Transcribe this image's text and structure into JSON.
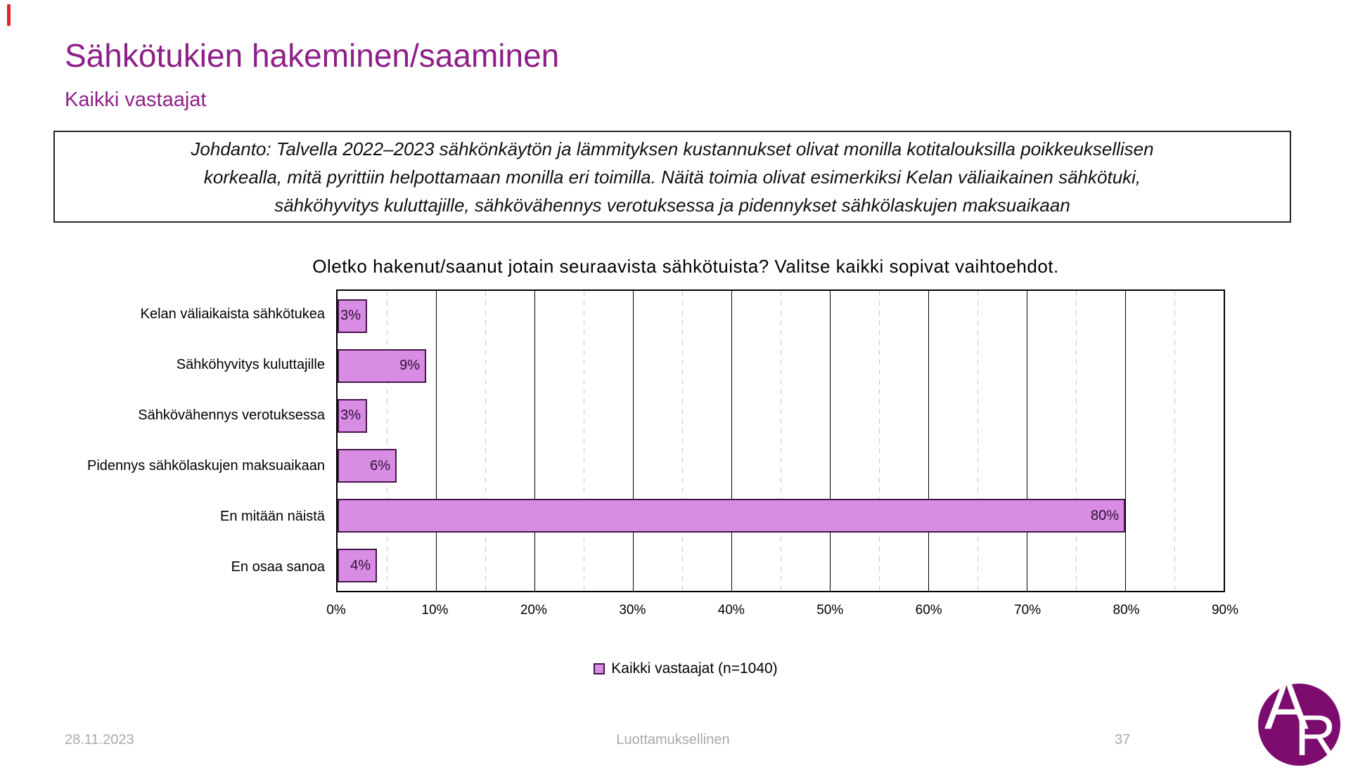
{
  "slide": {
    "title": "Sähkötukien hakeminen/saaminen",
    "subtitle": "Kaikki vastaajat",
    "intro": {
      "lines": [
        "Johdanto: Talvella 2022–2023 sähkönkäytön ja lämmityksen kustannukset olivat monilla kotitalouksilla poikkeuksellisen",
        "korkealla, mitä pyrittiin helpottamaan monilla eri toimilla. Näitä toimia olivat esimerkiksi Kelan väliaikainen sähkötuki,",
        "sähköhyvitys kuluttajille, sähkövähennys verotuksessa ja pidennykset sähkölaskujen maksuaikaan"
      ]
    },
    "accent_color": "#8e1f88"
  },
  "chart_data": {
    "type": "bar",
    "orientation": "horizontal",
    "title": "Oletko hakenut/saanut jotain seuraavista sähkötuista? Valitse kaikki sopivat vaihtoehdot.",
    "categories": [
      "Kelan väliaikaista sähkötukea",
      "Sähköhyvitys kuluttajille",
      "Sähkövähennys verotuksessa",
      "Pidennys sähkölaskujen maksuaikaan",
      "En mitään näistä",
      "En osaa sanoa"
    ],
    "values": [
      3,
      9,
      3,
      6,
      80,
      4
    ],
    "value_labels": [
      "3%",
      "9%",
      "3%",
      "6%",
      "80%",
      "4%"
    ],
    "xlim": [
      0,
      90
    ],
    "x_ticks": [
      "0%",
      "10%",
      "20%",
      "30%",
      "40%",
      "50%",
      "60%",
      "70%",
      "80%",
      "90%"
    ],
    "grid": {
      "major_step": 10,
      "minor_step": 5,
      "major_color": "#000000",
      "minor_color": "#c6c6c6"
    },
    "bar_fill": "#d98ce4",
    "bar_border": "#451549",
    "legend": {
      "label": "Kaikki vastaajat (n=1040)",
      "color": "#d98ce4",
      "position": "bottom-center"
    }
  },
  "footer": {
    "date": "28.11.2023",
    "classification": "Luottamuksellinen",
    "page_number": "37"
  },
  "logo": {
    "letter_a": "A",
    "letter_r": "R",
    "circle_color": "#7c0d6e"
  }
}
